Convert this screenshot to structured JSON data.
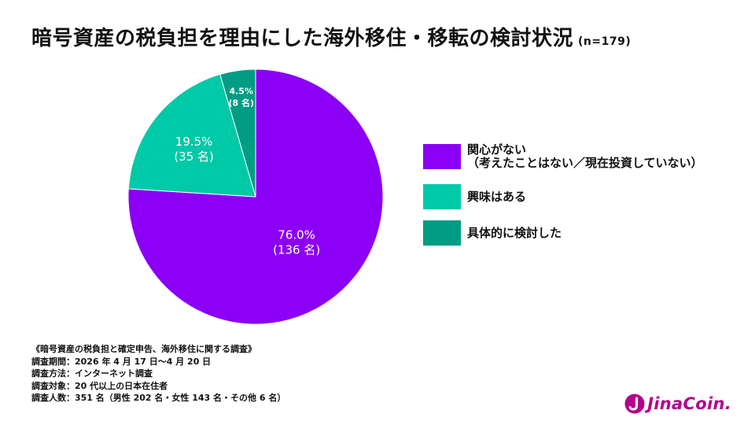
{
  "title": "暗号資産の税負担を理由にした海外移住・移転の検討状況",
  "sample_size": "(n=179)",
  "chart_data": {
    "type": "pie",
    "slices": [
      {
        "name": "関心がない\n（考えたことはない／現在投資していない）",
        "value": 76.0,
        "percent_label": "76.0%",
        "count_label": "(136 名)",
        "color": "#8B00F5"
      },
      {
        "name": "興味はある",
        "value": 19.5,
        "percent_label": "19.5%",
        "count_label": "(35 名)",
        "color": "#00C9A7"
      },
      {
        "name": "具体的に検討した",
        "value": 4.5,
        "percent_label": "4.5%",
        "count_label": "(8 名)",
        "color": "#009C84"
      }
    ]
  },
  "notes": [
    "《暗号資産の税負担と確定申告、海外移住に関する調査》",
    "調査期間：2026 年 4 月 17 日～4 月 20 日",
    "調査方法：インターネット調査",
    "調査対象：20 代以上の日本在住者",
    "調査人数：351 名（男性 202 名・女性 143 名・その他 6 名）"
  ],
  "brand": {
    "name": "JinaCoin.",
    "color": "#B4008C"
  }
}
